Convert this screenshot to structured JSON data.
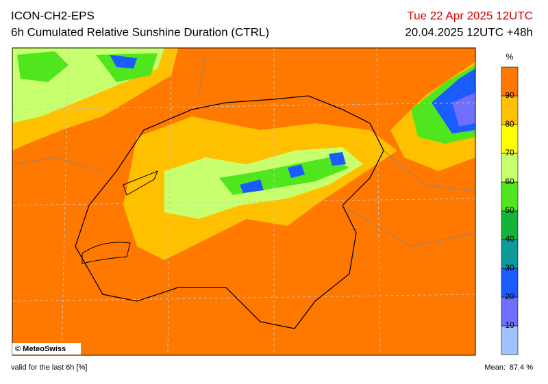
{
  "header": {
    "model": "ICON-CH2-EPS",
    "product": "6h Cumulated Relative Sunshine Duration (CTRL)",
    "valid_time": "Tue 22 Apr 2025 12UTC",
    "run": "20.04.2025 12UTC +48h"
  },
  "map": {
    "copyright": "© MeteoSwiss"
  },
  "legend": {
    "unit": "%",
    "colors": [
      "#a0c0ff",
      "#6e6eff",
      "#1a5cff",
      "#0e9a9a",
      "#14b43c",
      "#50e61e",
      "#c8ff6e",
      "#ffff00",
      "#ffc000",
      "#ff7800"
    ],
    "labels": [
      10,
      20,
      30,
      40,
      50,
      60,
      70,
      80,
      90
    ]
  },
  "footer": {
    "note": "valid for the last 6h [%]",
    "mean_label": "Mean:",
    "mean_value": "87.4 %"
  }
}
